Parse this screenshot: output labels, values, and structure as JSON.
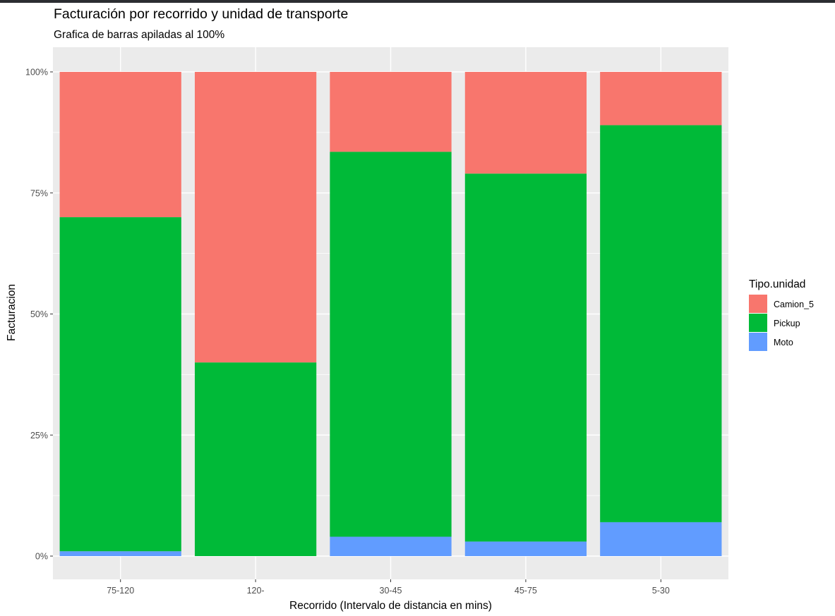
{
  "chart_data": {
    "type": "bar",
    "stacking": "percent",
    "title": "Facturación por recorrido y unidad de transporte",
    "subtitle": "Grafica de barras apiladas al 100%",
    "xlabel": "Recorrido (Intervalo de distancia en mins)",
    "ylabel": "Facturacion",
    "ylim": [
      0,
      1
    ],
    "yticks": [
      0,
      0.25,
      0.5,
      0.75,
      1
    ],
    "ytick_labels": [
      "0%",
      "25%",
      "50%",
      "75%",
      "100%"
    ],
    "categories": [
      "75-120",
      "120-",
      "30-45",
      "45-75",
      "5-30"
    ],
    "series": [
      {
        "name": "Moto",
        "color": "#619CFF",
        "values": [
          0.01,
          0.0,
          0.04,
          0.03,
          0.07
        ]
      },
      {
        "name": "Pickup",
        "color": "#00BA38",
        "values": [
          0.69,
          0.4,
          0.795,
          0.76,
          0.82
        ]
      },
      {
        "name": "Camion_5",
        "color": "#F8766D",
        "values": [
          0.3,
          0.6,
          0.165,
          0.21,
          0.11
        ]
      }
    ],
    "legend": {
      "title": "Tipo.unidad",
      "position": "right",
      "order": [
        "Camion_5",
        "Pickup",
        "Moto"
      ]
    },
    "grid": true,
    "panel_background": "#EBEBEB"
  }
}
